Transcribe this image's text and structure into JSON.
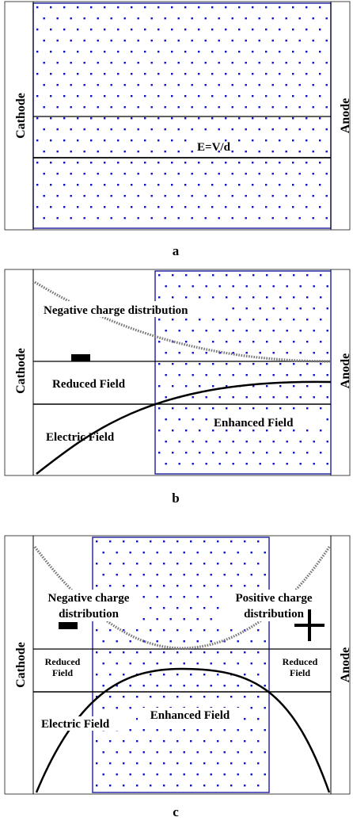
{
  "panels": [
    {
      "id": "a",
      "caption": "a",
      "electrode_left": "Cathode",
      "electrode_right": "Anode",
      "field_label": "E=V/d"
    },
    {
      "id": "b",
      "caption": "b",
      "electrode_left": "Cathode",
      "electrode_right": "Anode",
      "charge_label": "Negative charge distribution",
      "minus_sign": "−",
      "reduced_field": "Reduced Field",
      "enhanced_field": "Enhanced Field",
      "electric_field": "Electric Field"
    },
    {
      "id": "c",
      "caption": "c",
      "electrode_left": "Cathode",
      "electrode_right": "Anode",
      "neg_charge_line1": "Negative charge",
      "neg_charge_line2": "distribution",
      "pos_charge_line1": "Positive charge",
      "pos_charge_line2": "distribution",
      "minus_sign": "−",
      "plus_sign": "+",
      "reduced_field_left_line1": "Reduced",
      "reduced_field_left_line2": "Field",
      "reduced_field_right_line1": "Reduced",
      "reduced_field_right_line2": "Field",
      "enhanced_field": "Enhanced Field",
      "electric_field": "Electric Field"
    }
  ],
  "colors": {
    "dot": "#1010c8",
    "frame": "#2a2aa8",
    "line": "#000000",
    "charge_curve": "#777777"
  }
}
